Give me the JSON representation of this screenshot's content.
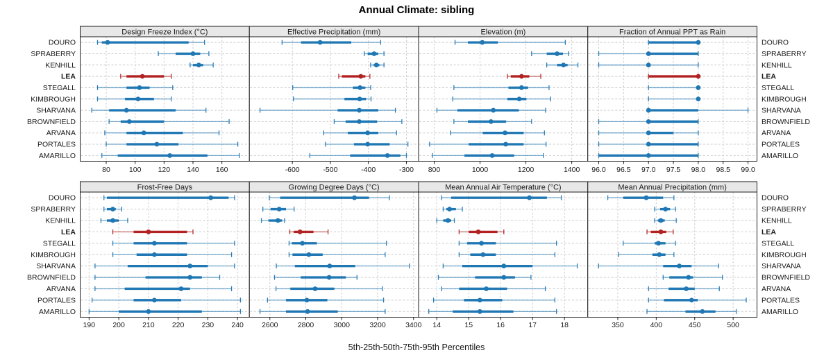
{
  "title": "Annual Climate: sibling",
  "xlabel": "5th-25th-50th-75th-95th Percentiles",
  "sites": [
    "DOURO",
    "SPRABERRY",
    "KENHILL",
    "LEA",
    "STEGALL",
    "KIMBROUGH",
    "SHARVANA",
    "BROWNFIELD",
    "ARVANA",
    "PORTALES",
    "AMARILLO"
  ],
  "highlight_site": "LEA",
  "colors": {
    "series": "#1f77b4",
    "highlight": "#b22222",
    "header_bg": "#e8e8e8",
    "panel_border": "#1a1a1a",
    "grid": "#cccccc",
    "text": "#1a1a1a"
  },
  "chart_data": {
    "type": "scatter",
    "variant": "horizontal 5th-25th-50th-75th-95th percentile interval plot (dot = median, thick bar = 25th-75th, thin whisker with caps = 5th-95th)",
    "categories": [
      "DOURO",
      "SPRABERRY",
      "KENHILL",
      "LEA",
      "STEGALL",
      "KIMBROUGH",
      "SHARVANA",
      "BROWNFIELD",
      "ARVANA",
      "PORTALES",
      "AMARILLO"
    ],
    "highlight": "LEA",
    "legend_position": "none",
    "grid": "dashed, at labeled ticks and at each category row",
    "panels": [
      {
        "title": "Design Freeze Index (°C)",
        "row": "top",
        "xlim": [
          62,
          179
        ],
        "ticks": [
          80,
          100,
          120,
          140,
          160
        ],
        "tick_labels": [
          "80",
          "100",
          "120",
          "140",
          "160"
        ],
        "values": {
          "DOURO": [
            74,
            77,
            81,
            137,
            148
          ],
          "SPRABERRY": [
            116,
            128,
            140,
            145,
            151
          ],
          "KENHILL": [
            138,
            140,
            144,
            147,
            154
          ],
          "LEA": [
            90,
            94,
            105,
            120,
            125
          ],
          "STEGALL": [
            74,
            94,
            103,
            110,
            126
          ],
          "KIMBROUGH": [
            74,
            93,
            102,
            113,
            125
          ],
          "SHARVANA": [
            70,
            82,
            94,
            128,
            149
          ],
          "BROWNFIELD": [
            82,
            90,
            96,
            120,
            165
          ],
          "ARVANA": [
            79,
            94,
            106,
            133,
            158
          ],
          "PORTALES": [
            80,
            94,
            115,
            130,
            171
          ],
          "AMARILLO": [
            77,
            88,
            124,
            150,
            172
          ]
        }
      },
      {
        "title": "Effective Precipitation (mm)",
        "row": "top",
        "xlim": [
          -713,
          -268
        ],
        "ticks": [
          -600,
          -500,
          -400,
          -300
        ],
        "tick_labels": [
          "-600",
          "-500",
          "-400",
          "-300"
        ],
        "values": {
          "DOURO": [
            -627,
            -577,
            -527,
            -445,
            -368
          ],
          "SPRABERRY": [
            -411,
            -402,
            -385,
            -374,
            -359
          ],
          "KENHILL": [
            -394,
            -386,
            -379,
            -371,
            -359
          ],
          "LEA": [
            -478,
            -470,
            -420,
            -408,
            -396
          ],
          "STEGALL": [
            -599,
            -441,
            -422,
            -408,
            -394
          ],
          "KIMBROUGH": [
            -597,
            -463,
            -423,
            -406,
            -393
          ],
          "SHARVANA": [
            -685,
            -481,
            -424,
            -374,
            -329
          ],
          "BROWNFIELD": [
            -490,
            -460,
            -424,
            -377,
            -312
          ],
          "ARVANA": [
            -518,
            -454,
            -402,
            -374,
            -326
          ],
          "PORTALES": [
            -513,
            -438,
            -402,
            -344,
            -296
          ],
          "AMARILLO": [
            -554,
            -448,
            -350,
            -316,
            -300
          ]
        }
      },
      {
        "title": "Elevation (m)",
        "row": "top",
        "xlim": [
          732,
          1470
        ],
        "ticks": [
          800,
          1000,
          1200,
          1400
        ],
        "tick_labels": [
          "800",
          "1000",
          "1200",
          "1400"
        ],
        "values": {
          "DOURO": [
            891,
            947,
            1010,
            1078,
            1372
          ],
          "SPRABERRY": [
            1225,
            1291,
            1336,
            1362,
            1387
          ],
          "KENHILL": [
            1291,
            1336,
            1364,
            1382,
            1427
          ],
          "LEA": [
            1119,
            1134,
            1181,
            1215,
            1265
          ],
          "STEGALL": [
            886,
            1124,
            1181,
            1210,
            1301
          ],
          "KIMBROUGH": [
            881,
            1119,
            1171,
            1202,
            1308
          ],
          "SHARVANA": [
            812,
            901,
            1058,
            1169,
            1286
          ],
          "BROWNFIELD": [
            886,
            947,
            1048,
            1114,
            1225
          ],
          "ARVANA": [
            871,
            1012,
            1109,
            1190,
            1281
          ],
          "PORTALES": [
            780,
            950,
            1112,
            1190,
            1288
          ],
          "AMARILLO": [
            792,
            932,
            1053,
            1149,
            1276
          ]
        }
      },
      {
        "title": "Fraction of Annual PPT as Rain",
        "row": "top",
        "xlim": [
          95.78,
          99.18
        ],
        "ticks": [
          96.0,
          96.5,
          97.0,
          97.5,
          98.0,
          98.5,
          99.0
        ],
        "tick_labels": [
          "96.0",
          "96.5",
          "97.0",
          "97.5",
          "98.0",
          "98.5",
          "99.0"
        ],
        "values": {
          "DOURO": [
            97,
            97,
            98,
            98,
            98
          ],
          "SPRABERRY": [
            96,
            97,
            97,
            98,
            98
          ],
          "KENHILL": [
            96,
            97,
            97,
            97,
            98
          ],
          "LEA": [
            97,
            97,
            98,
            98,
            98
          ],
          "STEGALL": [
            97,
            98,
            98,
            98,
            98
          ],
          "KIMBROUGH": [
            97,
            98,
            98,
            98,
            98
          ],
          "SHARVANA": [
            97,
            97,
            97,
            98,
            99
          ],
          "BROWNFIELD": [
            96,
            97,
            97,
            98,
            98
          ],
          "ARVANA": [
            96,
            97,
            97,
            97.5,
            98
          ],
          "PORTALES": [
            96,
            97,
            97,
            98,
            98
          ],
          "AMARILLO": [
            96,
            96,
            97,
            98,
            98
          ]
        }
      },
      {
        "title": "Frost-Free Days",
        "row": "bottom",
        "xlim": [
          187,
          244
        ],
        "ticks": [
          190,
          200,
          210,
          220,
          230,
          240
        ],
        "tick_labels": [
          "190",
          "200",
          "210",
          "220",
          "230",
          "240"
        ],
        "values": {
          "DOURO": [
            195,
            196,
            231,
            237,
            239
          ],
          "SPRABERRY": [
            195,
            196,
            198,
            199,
            201
          ],
          "KENHILL": [
            194,
            196,
            198,
            200,
            203
          ],
          "LEA": [
            198,
            205,
            210,
            223,
            225
          ],
          "STEGALL": [
            198,
            205,
            212,
            223,
            239
          ],
          "KIMBROUGH": [
            198,
            206,
            212,
            223,
            238
          ],
          "SHARVANA": [
            192,
            203,
            224,
            230,
            239
          ],
          "BROWNFIELD": [
            192,
            209,
            224,
            228,
            234
          ],
          "ARVANA": [
            192,
            202,
            221,
            224,
            238
          ],
          "PORTALES": [
            191,
            205,
            212,
            221,
            241
          ],
          "AMARILLO": [
            190,
            200,
            210,
            228,
            241
          ]
        }
      },
      {
        "title": "Growing Degree Days (°C)",
        "row": "bottom",
        "xlim": [
          2486,
          3428
        ],
        "ticks": [
          2600,
          2800,
          3000,
          3200,
          3400
        ],
        "tick_labels": [
          "2600",
          "2800",
          "3000",
          "3200",
          "3400"
        ],
        "values": {
          "DOURO": [
            2597,
            2657,
            3071,
            3152,
            3266
          ],
          "SPRABERRY": [
            2561,
            2604,
            2652,
            2690,
            2735
          ],
          "KENHILL": [
            2553,
            2592,
            2645,
            2668,
            2682
          ],
          "LEA": [
            2711,
            2733,
            2768,
            2843,
            2924
          ],
          "STEGALL": [
            2707,
            2722,
            2781,
            2862,
            3249
          ],
          "KIMBROUGH": [
            2707,
            2726,
            2817,
            2894,
            3242
          ],
          "SHARVANA": [
            2636,
            2739,
            2933,
            3075,
            3377
          ],
          "BROWNFIELD": [
            2626,
            2772,
            2930,
            3023,
            3085
          ],
          "ARVANA": [
            2634,
            2714,
            2852,
            2959,
            3226
          ],
          "PORTALES": [
            2587,
            2690,
            2806,
            2920,
            3233
          ],
          "AMARILLO": [
            2545,
            2690,
            2810,
            2978,
            3242
          ]
        }
      },
      {
        "title": "Mean Annual Air Temperature (°C)",
        "row": "bottom",
        "xlim": [
          13.43,
          18.73
        ],
        "ticks": [
          14,
          15,
          16,
          17,
          18
        ],
        "tick_labels": [
          "14",
          "15",
          "16",
          "17",
          "18"
        ],
        "values": {
          "DOURO": [
            14.15,
            14.45,
            16.9,
            17.45,
            17.9
          ],
          "SPRABERRY": [
            14.2,
            14.3,
            14.4,
            14.6,
            14.8
          ],
          "KENHILL": [
            14.0,
            14.2,
            14.35,
            14.45,
            14.55
          ],
          "LEA": [
            14.7,
            15.0,
            15.3,
            15.9,
            16.1
          ],
          "STEGALL": [
            14.7,
            14.95,
            15.4,
            15.85,
            17.75
          ],
          "KIMBROUGH": [
            14.7,
            15.05,
            15.45,
            15.85,
            17.7
          ],
          "SHARVANA": [
            14.2,
            14.8,
            16.1,
            17.0,
            18.4
          ],
          "BROWNFIELD": [
            14.05,
            15.2,
            16.1,
            16.45,
            16.95
          ],
          "ARVANA": [
            14.15,
            14.7,
            15.55,
            16.2,
            17.4
          ],
          "PORTALES": [
            13.9,
            14.85,
            15.35,
            16.05,
            17.7
          ],
          "AMARILLO": [
            13.75,
            14.5,
            15.35,
            16.4,
            17.75
          ]
        }
      },
      {
        "title": "Mean Annual Precipitation (mm)",
        "row": "bottom",
        "xlim": [
          311,
          531
        ],
        "ticks": [
          350,
          400,
          450,
          500
        ],
        "tick_labels": [
          "350",
          "400",
          "450",
          "500"
        ],
        "values": {
          "DOURO": [
            337,
            357,
            387,
            409,
            423
          ],
          "SPRABERRY": [
            398,
            405,
            412,
            418,
            425
          ],
          "KENHILL": [
            398,
            402,
            406,
            411,
            426
          ],
          "LEA": [
            388,
            393,
            406,
            413,
            422
          ],
          "STEGALL": [
            357,
            398,
            403,
            412,
            425
          ],
          "KIMBROUGH": [
            351,
            395,
            404,
            412,
            423
          ],
          "SHARVANA": [
            325,
            409,
            430,
            446,
            481
          ],
          "BROWNFIELD": [
            409,
            417,
            442,
            448,
            486
          ],
          "ARVANA": [
            390,
            416,
            439,
            450,
            482
          ],
          "PORTALES": [
            390,
            410,
            446,
            454,
            517
          ],
          "AMARILLO": [
            388,
            438,
            460,
            477,
            504
          ]
        }
      }
    ]
  }
}
